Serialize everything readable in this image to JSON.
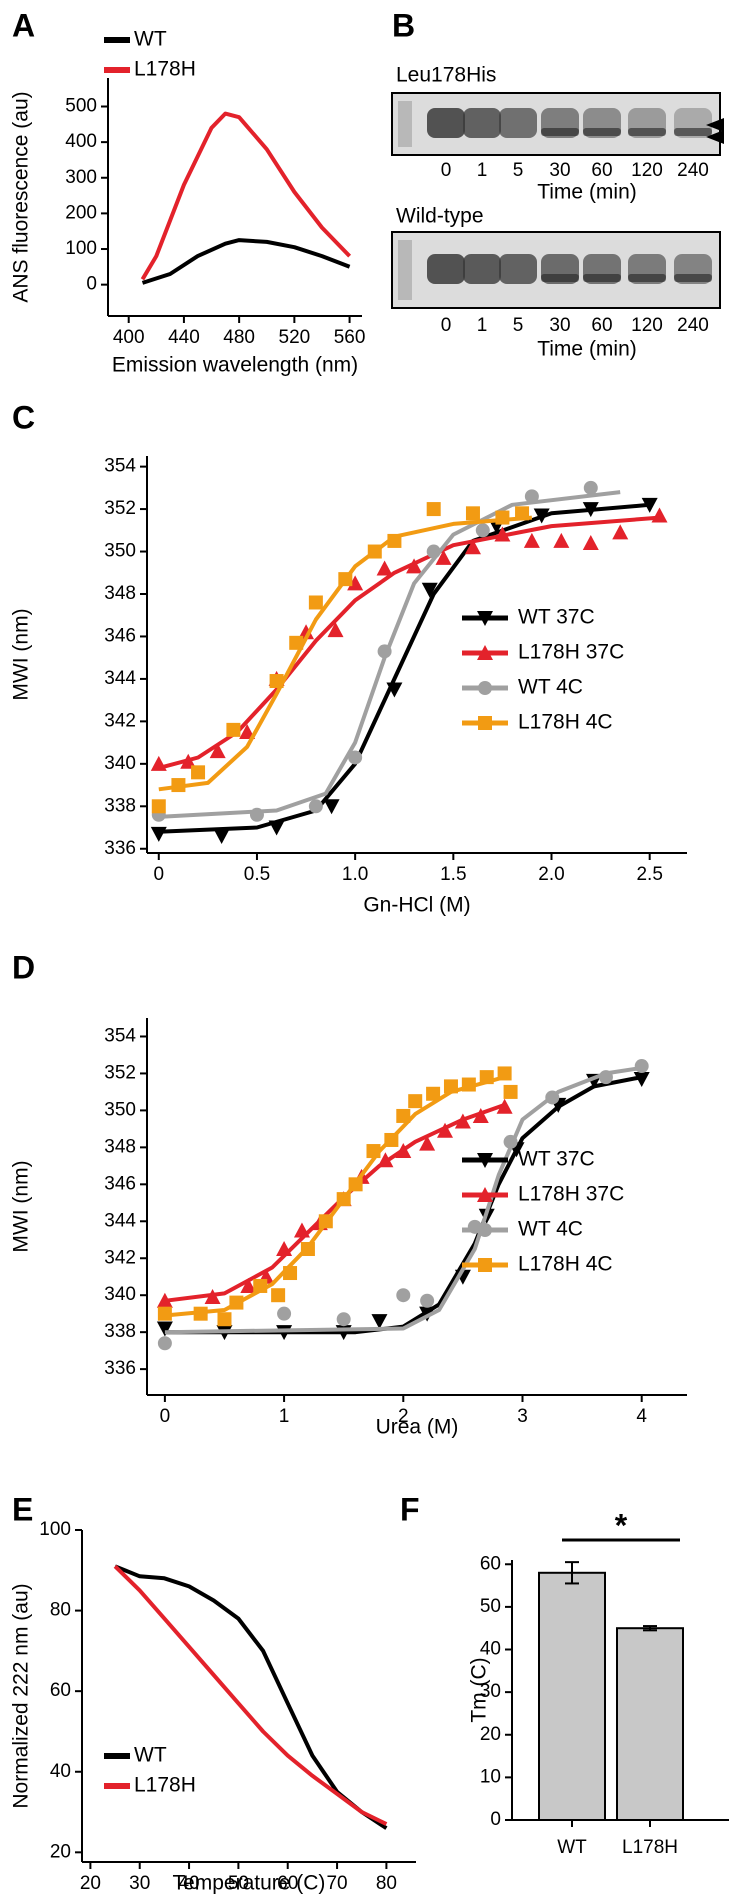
{
  "chart_data": [
    {
      "type": "line",
      "label": "A",
      "xlabel": "Emission wavelength (nm)",
      "ylabel": "ANS fluorescence (au)",
      "xlim": [
        385,
        569
      ],
      "xticks": [
        400,
        440,
        480,
        520,
        560
      ],
      "ylim": [
        -88,
        580
      ],
      "yticks": [
        0,
        100,
        200,
        300,
        400,
        500
      ],
      "legend": "upper left",
      "series": [
        {
          "name": "WT",
          "color": "#000000",
          "x": [
            410,
            430,
            450,
            470,
            480,
            500,
            520,
            540,
            560
          ],
          "values": [
            5,
            30,
            80,
            115,
            125,
            120,
            105,
            80,
            50
          ]
        },
        {
          "name": "L178H",
          "color": "#e3222b",
          "x": [
            410,
            420,
            440,
            460,
            470,
            480,
            500,
            520,
            540,
            560
          ],
          "values": [
            15,
            80,
            280,
            440,
            480,
            470,
            380,
            260,
            160,
            80
          ]
        }
      ]
    },
    {
      "type": "gel",
      "label": "B",
      "panels": [
        {
          "title": "Leu178His",
          "categories": [
            "0",
            "1",
            "5",
            "30",
            "60",
            "120",
            "240"
          ],
          "xlabel": "Time (min)"
        },
        {
          "title": "Wild-type",
          "categories": [
            "0",
            "1",
            "5",
            "30",
            "60",
            "120",
            "240"
          ],
          "xlabel": "Time (min)"
        }
      ]
    },
    {
      "type": "scatter",
      "label": "C",
      "xlabel": "Gn-HCl (M)",
      "ylabel": "MWI (nm)",
      "xlim": [
        -0.06,
        2.69
      ],
      "xticks": [
        0,
        0.5,
        {
          "value": 1,
          "label": "1.0"
        },
        1.5,
        {
          "value": 2,
          "label": "2.0"
        },
        2.5
      ],
      "ylim": [
        335.8,
        354.5
      ],
      "yticks": [
        336,
        338,
        340,
        342,
        344,
        346,
        348,
        350,
        352,
        354
      ],
      "legend": "lower right",
      "series": [
        {
          "name": "WT 37C",
          "color": "#000000",
          "marker": "triangle-down",
          "x": [
            0,
            0.32,
            0.6,
            0.88,
            1.2,
            1.38,
            1.72,
            1.95,
            2.2,
            2.5
          ],
          "values": [
            336.7,
            336.6,
            337,
            338,
            343.5,
            348.2,
            351.2,
            351.7,
            352,
            352.2
          ],
          "fit": {
            "x": [
              0,
              0.5,
              0.8,
              1.0,
              1.2,
              1.4,
              1.6,
              2.0,
              2.5
            ],
            "values": [
              336.8,
              337,
              337.8,
              340,
              344,
              348,
              350.5,
              351.8,
              352.2
            ]
          }
        },
        {
          "name": "L178H 37C",
          "color": "#e3222b",
          "marker": "triangle-up",
          "x": [
            0,
            0.15,
            0.3,
            0.45,
            0.6,
            0.75,
            0.9,
            1.0,
            1.15,
            1.3,
            1.45,
            1.6,
            1.75,
            1.9,
            2.05,
            2.2,
            2.35,
            2.55
          ],
          "values": [
            340,
            340.1,
            340.6,
            341.5,
            344,
            346.2,
            346.3,
            348.5,
            349.2,
            349.3,
            349.7,
            350.2,
            350.8,
            350.5,
            350.5,
            350.4,
            350.9,
            351.7
          ],
          "fit": {
            "x": [
              0,
              0.2,
              0.4,
              0.6,
              0.8,
              1.0,
              1.2,
              1.5,
              2.0,
              2.55
            ],
            "values": [
              339.8,
              340.3,
              341.5,
              343.5,
              345.8,
              347.7,
              349,
              350.3,
              351.2,
              351.6
            ]
          }
        },
        {
          "name": "WT 4C",
          "color": "#a0a0a0",
          "marker": "circle",
          "x": [
            0,
            0.5,
            0.8,
            1.0,
            1.15,
            1.4,
            1.65,
            1.9,
            2.2
          ],
          "values": [
            337.6,
            337.6,
            338,
            340.3,
            345.3,
            350,
            351,
            352.6,
            353
          ],
          "fit": {
            "x": [
              0,
              0.6,
              0.85,
              1.0,
              1.15,
              1.3,
              1.5,
              1.8,
              2.35
            ],
            "values": [
              337.5,
              337.8,
              338.6,
              341,
              345,
              348.5,
              350.8,
              352.2,
              352.8
            ]
          }
        },
        {
          "name": "L178H 4C",
          "color": "#f29b13",
          "marker": "square",
          "x": [
            0,
            0.1,
            0.2,
            0.38,
            0.6,
            0.7,
            0.8,
            0.95,
            1.1,
            1.2,
            1.4,
            1.6,
            1.75,
            1.85
          ],
          "values": [
            338,
            339,
            339.6,
            341.6,
            343.9,
            345.7,
            347.6,
            348.7,
            350,
            350.5,
            352,
            351.8,
            351.6,
            351.8
          ],
          "fit": {
            "x": [
              0,
              0.25,
              0.45,
              0.6,
              0.8,
              1.0,
              1.2,
              1.5,
              1.9
            ],
            "values": [
              338.8,
              339.1,
              340.8,
              343.3,
              346.8,
              349.3,
              350.7,
              351.3,
              351.6
            ]
          }
        }
      ]
    },
    {
      "type": "scatter",
      "label": "D",
      "xlabel": "Urea (M)",
      "ylabel": "MWI (nm)",
      "xlim": [
        -0.15,
        4.38
      ],
      "xticks": [
        0,
        1,
        2,
        3,
        4
      ],
      "ylim": [
        334.6,
        355
      ],
      "yticks": [
        336,
        338,
        340,
        342,
        344,
        346,
        348,
        350,
        352,
        354
      ],
      "legend": "lower right",
      "series": [
        {
          "name": "WT 37C",
          "color": "#000000",
          "marker": "triangle-down",
          "x": [
            0,
            0.5,
            1.0,
            1.5,
            1.8,
            2.2,
            2.5,
            2.7,
            2.95,
            3.3,
            3.6,
            4.0
          ],
          "values": [
            338.2,
            338,
            338,
            338,
            338.6,
            339,
            341,
            344.3,
            347.9,
            350.3,
            351.6,
            351.7
          ],
          "fit": {
            "x": [
              0,
              1.6,
              2.0,
              2.3,
              2.6,
              2.8,
              3.0,
              3.3,
              3.6,
              4.0
            ],
            "values": [
              338,
              338,
              338.3,
              339.5,
              342.8,
              346,
              348.5,
              350.2,
              351.3,
              351.8
            ]
          }
        },
        {
          "name": "L178H 37C",
          "color": "#e3222b",
          "marker": "triangle-up",
          "x": [
            0,
            0.4,
            0.7,
            0.85,
            1.0,
            1.15,
            1.3,
            1.5,
            1.65,
            1.85,
            2.0,
            2.2,
            2.35,
            2.5,
            2.65,
            2.85
          ],
          "values": [
            339.7,
            339.9,
            340.5,
            341,
            342.5,
            343.5,
            343.9,
            345.2,
            346.4,
            347.3,
            347.8,
            348.2,
            348.9,
            349.4,
            349.7,
            350.2
          ],
          "fit": {
            "x": [
              0,
              0.5,
              0.9,
              1.2,
              1.5,
              1.8,
              2.1,
              2.5,
              2.85
            ],
            "values": [
              339.7,
              340.1,
              341.5,
              343.4,
              345.3,
              347,
              348.3,
              349.5,
              350.3
            ]
          }
        },
        {
          "name": "WT 4C",
          "color": "#a0a0a0",
          "marker": "circle",
          "x": [
            0,
            1.0,
            1.5,
            2.0,
            2.2,
            2.6,
            2.9,
            3.25,
            3.7,
            4.0
          ],
          "values": [
            337.4,
            339,
            338.7,
            340,
            339.7,
            343.7,
            348.3,
            350.7,
            351.8,
            352.4
          ],
          "fit": {
            "x": [
              0,
              2.0,
              2.3,
              2.6,
              2.8,
              3.0,
              3.3,
              3.7,
              4.0
            ],
            "values": [
              338,
              338.2,
              339.2,
              342.5,
              346.5,
              349.5,
              351,
              352,
              352.3
            ]
          }
        },
        {
          "name": "L178H 4C",
          "color": "#f29b13",
          "marker": "square",
          "x": [
            0,
            0.3,
            0.5,
            0.6,
            0.8,
            0.95,
            1.05,
            1.2,
            1.35,
            1.5,
            1.6,
            1.75,
            1.9,
            2.0,
            2.1,
            2.25,
            2.4,
            2.55,
            2.7,
            2.85,
            2.9
          ],
          "values": [
            339,
            339,
            338.7,
            339.6,
            340.5,
            340,
            341.2,
            342.5,
            344,
            345.2,
            346,
            347.8,
            348.4,
            349.7,
            350.5,
            350.9,
            351.3,
            351.4,
            351.8,
            352,
            351
          ],
          "fit": {
            "x": [
              0,
              0.5,
              0.9,
              1.2,
              1.5,
              1.8,
              2.1,
              2.4,
              2.85
            ],
            "values": [
              338.9,
              339.2,
              340.6,
              342.6,
              345.2,
              347.8,
              349.8,
              351,
              351.8
            ]
          }
        }
      ]
    },
    {
      "type": "line",
      "label": "E",
      "xlabel": "Temperature (C)",
      "ylabel": "Normalized 222 nm (au)",
      "xlim": [
        18.3,
        86
      ],
      "xticks": [
        20,
        30,
        40,
        50,
        60,
        70,
        80
      ],
      "ylim": [
        17.6,
        100
      ],
      "yticks": [
        20,
        40,
        60,
        80,
        100
      ],
      "legend": "lower left",
      "series": [
        {
          "name": "WT",
          "color": "#000000",
          "x": [
            25,
            30,
            35,
            40,
            45,
            50,
            55,
            60,
            65,
            70,
            75,
            80
          ],
          "values": [
            91,
            88.5,
            88,
            86,
            82.5,
            78,
            70,
            57,
            44,
            35,
            30,
            26
          ]
        },
        {
          "name": "L178H",
          "color": "#e3222b",
          "x": [
            25,
            30,
            35,
            40,
            45,
            50,
            55,
            60,
            65,
            70,
            75,
            80
          ],
          "values": [
            91,
            85,
            78,
            71,
            64,
            57,
            50,
            44,
            39,
            34.5,
            30,
            27
          ]
        }
      ]
    },
    {
      "type": "bar",
      "label": "F",
      "ylabel": "Tm (C)",
      "annotation": "*",
      "categories": [
        "WT",
        "L178H"
      ],
      "values": [
        58,
        45
      ],
      "errors": [
        2.5,
        0.5
      ],
      "color": "#c8c8c8",
      "ylim": [
        0,
        61
      ],
      "yticks": [
        0,
        10,
        20,
        30,
        40,
        50,
        60
      ]
    }
  ]
}
